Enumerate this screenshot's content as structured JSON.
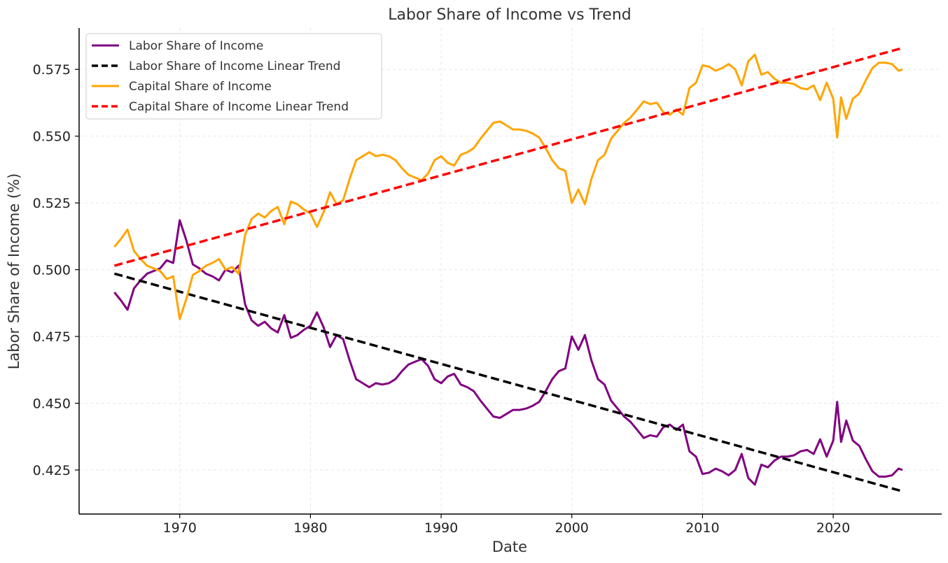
{
  "chart_data": {
    "type": "line",
    "title": "Labor Share of Income vs Trend",
    "xlabel": "Date",
    "ylabel": "Labor Share of Income (%)",
    "xlim": [
      1962.3,
      2028.3
    ],
    "ylim": [
      0.4085,
      0.5905
    ],
    "x_ticks": [
      1970,
      1980,
      1990,
      2000,
      2010,
      2020
    ],
    "x_tick_labels": [
      "1970",
      "1980",
      "1990",
      "2000",
      "2010",
      "2020"
    ],
    "y_ticks": [
      0.425,
      0.45,
      0.475,
      0.5,
      0.525,
      0.55,
      0.575
    ],
    "y_tick_labels": [
      "0.425",
      "0.450",
      "0.475",
      "0.500",
      "0.525",
      "0.550",
      "0.575"
    ],
    "grid": true,
    "legend_position": "top-left",
    "series": [
      {
        "name": "Labor Share of Income",
        "color": "#800080",
        "style": "solid",
        "points": [
          [
            1965.0,
            0.4915
          ],
          [
            1965.5,
            0.4885
          ],
          [
            1966.0,
            0.485
          ],
          [
            1966.5,
            0.493
          ],
          [
            1967.0,
            0.496
          ],
          [
            1967.5,
            0.4985
          ],
          [
            1968.0,
            0.4995
          ],
          [
            1968.5,
            0.5005
          ],
          [
            1969.0,
            0.5035
          ],
          [
            1969.5,
            0.5025
          ],
          [
            1970.0,
            0.5185
          ],
          [
            1970.5,
            0.511
          ],
          [
            1971.0,
            0.502
          ],
          [
            1971.5,
            0.5005
          ],
          [
            1972.0,
            0.4985
          ],
          [
            1972.5,
            0.4975
          ],
          [
            1973.0,
            0.496
          ],
          [
            1973.5,
            0.5
          ],
          [
            1974.0,
            0.499
          ],
          [
            1974.5,
            0.5015
          ],
          [
            1975.0,
            0.487
          ],
          [
            1975.5,
            0.481
          ],
          [
            1976.0,
            0.479
          ],
          [
            1976.5,
            0.4805
          ],
          [
            1977.0,
            0.478
          ],
          [
            1977.5,
            0.4765
          ],
          [
            1978.0,
            0.483
          ],
          [
            1978.5,
            0.4745
          ],
          [
            1979.0,
            0.4755
          ],
          [
            1979.5,
            0.4775
          ],
          [
            1980.0,
            0.479
          ],
          [
            1980.5,
            0.484
          ],
          [
            1981.0,
            0.4785
          ],
          [
            1981.5,
            0.471
          ],
          [
            1982.0,
            0.4755
          ],
          [
            1982.5,
            0.474
          ],
          [
            1983.0,
            0.466
          ],
          [
            1983.5,
            0.459
          ],
          [
            1984.0,
            0.4575
          ],
          [
            1984.5,
            0.456
          ],
          [
            1985.0,
            0.4575
          ],
          [
            1985.5,
            0.457
          ],
          [
            1986.0,
            0.4575
          ],
          [
            1986.5,
            0.459
          ],
          [
            1987.0,
            0.462
          ],
          [
            1987.5,
            0.4645
          ],
          [
            1988.0,
            0.4655
          ],
          [
            1988.5,
            0.4665
          ],
          [
            1989.0,
            0.464
          ],
          [
            1989.5,
            0.459
          ],
          [
            1990.0,
            0.4575
          ],
          [
            1990.5,
            0.46
          ],
          [
            1991.0,
            0.461
          ],
          [
            1991.5,
            0.457
          ],
          [
            1992.0,
            0.456
          ],
          [
            1992.5,
            0.4545
          ],
          [
            1993.0,
            0.451
          ],
          [
            1993.5,
            0.448
          ],
          [
            1994.0,
            0.445
          ],
          [
            1994.5,
            0.4445
          ],
          [
            1995.0,
            0.446
          ],
          [
            1995.5,
            0.4475
          ],
          [
            1996.0,
            0.4475
          ],
          [
            1996.5,
            0.448
          ],
          [
            1997.0,
            0.449
          ],
          [
            1997.5,
            0.4505
          ],
          [
            1998.0,
            0.4545
          ],
          [
            1998.5,
            0.459
          ],
          [
            1999.0,
            0.462
          ],
          [
            1999.5,
            0.463
          ],
          [
            2000.0,
            0.475
          ],
          [
            2000.5,
            0.47
          ],
          [
            2001.0,
            0.4755
          ],
          [
            2001.5,
            0.466
          ],
          [
            2002.0,
            0.459
          ],
          [
            2002.5,
            0.457
          ],
          [
            2003.0,
            0.451
          ],
          [
            2003.5,
            0.448
          ],
          [
            2004.0,
            0.445
          ],
          [
            2004.5,
            0.443
          ],
          [
            2005.0,
            0.44
          ],
          [
            2005.5,
            0.437
          ],
          [
            2006.0,
            0.438
          ],
          [
            2006.5,
            0.4375
          ],
          [
            2007.0,
            0.441
          ],
          [
            2007.5,
            0.442
          ],
          [
            2008.0,
            0.44
          ],
          [
            2008.5,
            0.442
          ],
          [
            2009.0,
            0.432
          ],
          [
            2009.5,
            0.43
          ],
          [
            2010.0,
            0.4235
          ],
          [
            2010.5,
            0.424
          ],
          [
            2011.0,
            0.4255
          ],
          [
            2011.5,
            0.4245
          ],
          [
            2012.0,
            0.423
          ],
          [
            2012.5,
            0.425
          ],
          [
            2013.0,
            0.431
          ],
          [
            2013.5,
            0.422
          ],
          [
            2014.0,
            0.4195
          ],
          [
            2014.5,
            0.427
          ],
          [
            2015.0,
            0.426
          ],
          [
            2015.5,
            0.4285
          ],
          [
            2016.0,
            0.43
          ],
          [
            2016.5,
            0.43
          ],
          [
            2017.0,
            0.4305
          ],
          [
            2017.5,
            0.432
          ],
          [
            2018.0,
            0.4325
          ],
          [
            2018.5,
            0.431
          ],
          [
            2019.0,
            0.4365
          ],
          [
            2019.5,
            0.43
          ],
          [
            2020.0,
            0.436
          ],
          [
            2020.3,
            0.4505
          ],
          [
            2020.6,
            0.4355
          ],
          [
            2021.0,
            0.4435
          ],
          [
            2021.5,
            0.436
          ],
          [
            2022.0,
            0.434
          ],
          [
            2022.5,
            0.429
          ],
          [
            2023.0,
            0.4245
          ],
          [
            2023.5,
            0.4225
          ],
          [
            2024.0,
            0.4225
          ],
          [
            2024.5,
            0.423
          ],
          [
            2025.0,
            0.4255
          ],
          [
            2025.3,
            0.425
          ]
        ]
      },
      {
        "name": "Labor Share of Income Linear Trend",
        "color": "#000000",
        "style": "dashed",
        "points": [
          [
            1965.0,
            0.4985
          ],
          [
            2025.3,
            0.417
          ]
        ]
      },
      {
        "name": "Capital Share of Income",
        "color": "#FFA500",
        "style": "solid",
        "points": [
          [
            1965.0,
            0.5085
          ],
          [
            1965.5,
            0.5115
          ],
          [
            1966.0,
            0.515
          ],
          [
            1966.5,
            0.507
          ],
          [
            1967.0,
            0.504
          ],
          [
            1967.5,
            0.5015
          ],
          [
            1968.0,
            0.5005
          ],
          [
            1968.5,
            0.4995
          ],
          [
            1969.0,
            0.4965
          ],
          [
            1969.5,
            0.4975
          ],
          [
            1970.0,
            0.4815
          ],
          [
            1970.5,
            0.489
          ],
          [
            1971.0,
            0.498
          ],
          [
            1971.5,
            0.4995
          ],
          [
            1972.0,
            0.5015
          ],
          [
            1972.5,
            0.5025
          ],
          [
            1973.0,
            0.504
          ],
          [
            1973.5,
            0.5
          ],
          [
            1974.0,
            0.501
          ],
          [
            1974.5,
            0.4985
          ],
          [
            1975.0,
            0.513
          ],
          [
            1975.5,
            0.519
          ],
          [
            1976.0,
            0.521
          ],
          [
            1976.5,
            0.5195
          ],
          [
            1977.0,
            0.522
          ],
          [
            1977.5,
            0.5235
          ],
          [
            1978.0,
            0.517
          ],
          [
            1978.5,
            0.5255
          ],
          [
            1979.0,
            0.5245
          ],
          [
            1979.5,
            0.5225
          ],
          [
            1980.0,
            0.521
          ],
          [
            1980.5,
            0.516
          ],
          [
            1981.0,
            0.5215
          ],
          [
            1981.5,
            0.529
          ],
          [
            1982.0,
            0.5245
          ],
          [
            1982.5,
            0.526
          ],
          [
            1983.0,
            0.534
          ],
          [
            1983.5,
            0.541
          ],
          [
            1984.0,
            0.5425
          ],
          [
            1984.5,
            0.544
          ],
          [
            1985.0,
            0.5425
          ],
          [
            1985.5,
            0.543
          ],
          [
            1986.0,
            0.5425
          ],
          [
            1986.5,
            0.541
          ],
          [
            1987.0,
            0.538
          ],
          [
            1987.5,
            0.5355
          ],
          [
            1988.0,
            0.5345
          ],
          [
            1988.5,
            0.5335
          ],
          [
            1989.0,
            0.536
          ],
          [
            1989.5,
            0.541
          ],
          [
            1990.0,
            0.5425
          ],
          [
            1990.5,
            0.54
          ],
          [
            1991.0,
            0.539
          ],
          [
            1991.5,
            0.543
          ],
          [
            1992.0,
            0.544
          ],
          [
            1992.5,
            0.5455
          ],
          [
            1993.0,
            0.549
          ],
          [
            1993.5,
            0.552
          ],
          [
            1994.0,
            0.555
          ],
          [
            1994.5,
            0.5555
          ],
          [
            1995.0,
            0.554
          ],
          [
            1995.5,
            0.5525
          ],
          [
            1996.0,
            0.5525
          ],
          [
            1996.5,
            0.552
          ],
          [
            1997.0,
            0.551
          ],
          [
            1997.5,
            0.5495
          ],
          [
            1998.0,
            0.5455
          ],
          [
            1998.5,
            0.541
          ],
          [
            1999.0,
            0.538
          ],
          [
            1999.5,
            0.537
          ],
          [
            2000.0,
            0.525
          ],
          [
            2000.5,
            0.53
          ],
          [
            2001.0,
            0.5245
          ],
          [
            2001.5,
            0.534
          ],
          [
            2002.0,
            0.541
          ],
          [
            2002.5,
            0.543
          ],
          [
            2003.0,
            0.549
          ],
          [
            2003.5,
            0.552
          ],
          [
            2004.0,
            0.555
          ],
          [
            2004.5,
            0.557
          ],
          [
            2005.0,
            0.56
          ],
          [
            2005.5,
            0.563
          ],
          [
            2006.0,
            0.562
          ],
          [
            2006.5,
            0.5625
          ],
          [
            2007.0,
            0.559
          ],
          [
            2007.5,
            0.558
          ],
          [
            2008.0,
            0.56
          ],
          [
            2008.5,
            0.558
          ],
          [
            2009.0,
            0.568
          ],
          [
            2009.5,
            0.57
          ],
          [
            2010.0,
            0.5765
          ],
          [
            2010.5,
            0.576
          ],
          [
            2011.0,
            0.5745
          ],
          [
            2011.5,
            0.5755
          ],
          [
            2012.0,
            0.577
          ],
          [
            2012.5,
            0.575
          ],
          [
            2013.0,
            0.569
          ],
          [
            2013.5,
            0.578
          ],
          [
            2014.0,
            0.5805
          ],
          [
            2014.5,
            0.573
          ],
          [
            2015.0,
            0.574
          ],
          [
            2015.5,
            0.5715
          ],
          [
            2016.0,
            0.57
          ],
          [
            2016.5,
            0.57
          ],
          [
            2017.0,
            0.5695
          ],
          [
            2017.5,
            0.568
          ],
          [
            2018.0,
            0.5675
          ],
          [
            2018.5,
            0.569
          ],
          [
            2019.0,
            0.5635
          ],
          [
            2019.5,
            0.57
          ],
          [
            2020.0,
            0.564
          ],
          [
            2020.3,
            0.5495
          ],
          [
            2020.6,
            0.5645
          ],
          [
            2021.0,
            0.5565
          ],
          [
            2021.5,
            0.564
          ],
          [
            2022.0,
            0.566
          ],
          [
            2022.5,
            0.571
          ],
          [
            2023.0,
            0.5755
          ],
          [
            2023.5,
            0.5775
          ],
          [
            2024.0,
            0.5775
          ],
          [
            2024.5,
            0.577
          ],
          [
            2025.0,
            0.5745
          ],
          [
            2025.3,
            0.575
          ]
        ]
      },
      {
        "name": "Capital Share of Income Linear Trend",
        "color": "#FF0000",
        "style": "dashed",
        "points": [
          [
            1965.0,
            0.5015
          ],
          [
            2025.3,
            0.583
          ]
        ]
      }
    ]
  }
}
